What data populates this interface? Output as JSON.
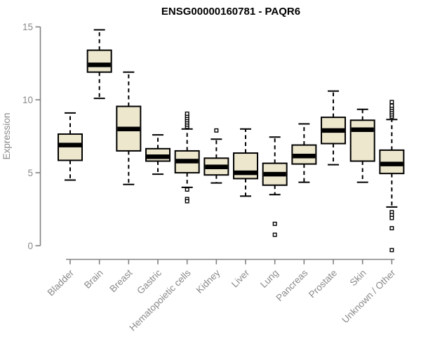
{
  "chart_data": {
    "type": "boxplot",
    "title": "ENSG00000160781 - PAQR6",
    "ylabel": "Expression",
    "xlabel": "",
    "ylim": [
      0,
      15
    ],
    "yticks": [
      0,
      5,
      10,
      15
    ],
    "grid": false,
    "legend": "none",
    "categories": [
      "Bladder",
      "Brain",
      "Breast",
      "Gastric",
      "Hematopoietic cells",
      "Kidney",
      "Liver",
      "Lung",
      "Pancreas",
      "Prostate",
      "Skin",
      "Unknown / Other"
    ],
    "series": [
      {
        "name": "Bladder",
        "low": 4.5,
        "q1": 5.85,
        "median": 6.9,
        "q3": 7.65,
        "high": 9.1,
        "outliers": []
      },
      {
        "name": "Brain",
        "low": 10.1,
        "q1": 11.9,
        "median": 12.4,
        "q3": 13.4,
        "high": 14.8,
        "outliers": []
      },
      {
        "name": "Breast",
        "low": 4.2,
        "q1": 6.5,
        "median": 8.0,
        "q3": 9.55,
        "high": 11.9,
        "outliers": []
      },
      {
        "name": "Gastric",
        "low": 4.9,
        "q1": 5.8,
        "median": 6.1,
        "q3": 6.65,
        "high": 7.6,
        "outliers": []
      },
      {
        "name": "Hematopoietic cells",
        "low": 4.0,
        "q1": 5.0,
        "median": 5.8,
        "q3": 6.5,
        "high": 8.0,
        "outliers": [
          8.15,
          8.3,
          8.45,
          8.6,
          8.75,
          8.9,
          9.05,
          3.85,
          3.2,
          3.05
        ]
      },
      {
        "name": "Kidney",
        "low": 4.3,
        "q1": 4.85,
        "median": 5.4,
        "q3": 6.0,
        "high": 7.3,
        "outliers": [
          7.9
        ]
      },
      {
        "name": "Liver",
        "low": 3.4,
        "q1": 4.6,
        "median": 5.0,
        "q3": 6.35,
        "high": 8.0,
        "outliers": []
      },
      {
        "name": "Lung",
        "low": 3.5,
        "q1": 4.15,
        "median": 4.9,
        "q3": 5.65,
        "high": 7.45,
        "outliers": [
          1.5,
          0.75
        ]
      },
      {
        "name": "Pancreas",
        "low": 4.35,
        "q1": 5.6,
        "median": 6.15,
        "q3": 6.9,
        "high": 8.35,
        "outliers": []
      },
      {
        "name": "Prostate",
        "low": 5.55,
        "q1": 7.0,
        "median": 7.9,
        "q3": 8.8,
        "high": 10.6,
        "outliers": []
      },
      {
        "name": "Skin",
        "low": 4.35,
        "q1": 5.8,
        "median": 7.95,
        "q3": 8.6,
        "high": 9.35,
        "outliers": []
      },
      {
        "name": "Unknown / Other",
        "low": 2.65,
        "q1": 4.95,
        "median": 5.6,
        "q3": 6.55,
        "high": 8.65,
        "outliers": [
          8.85,
          9.0,
          9.15,
          9.3,
          9.45,
          9.6,
          9.85,
          2.3,
          2.1,
          1.9,
          1.2,
          -0.3
        ]
      }
    ]
  },
  "colors": {
    "box_fill": "#ede7ce",
    "box_stroke": "#000000",
    "median": "#000000",
    "whisker": "#000000",
    "outlier_fill": "#ffffff",
    "outlier_stroke": "#000000",
    "axis": "#808080",
    "tick_text": "#8a8a8a",
    "title_text": "#000000",
    "background": "#ffffff"
  }
}
